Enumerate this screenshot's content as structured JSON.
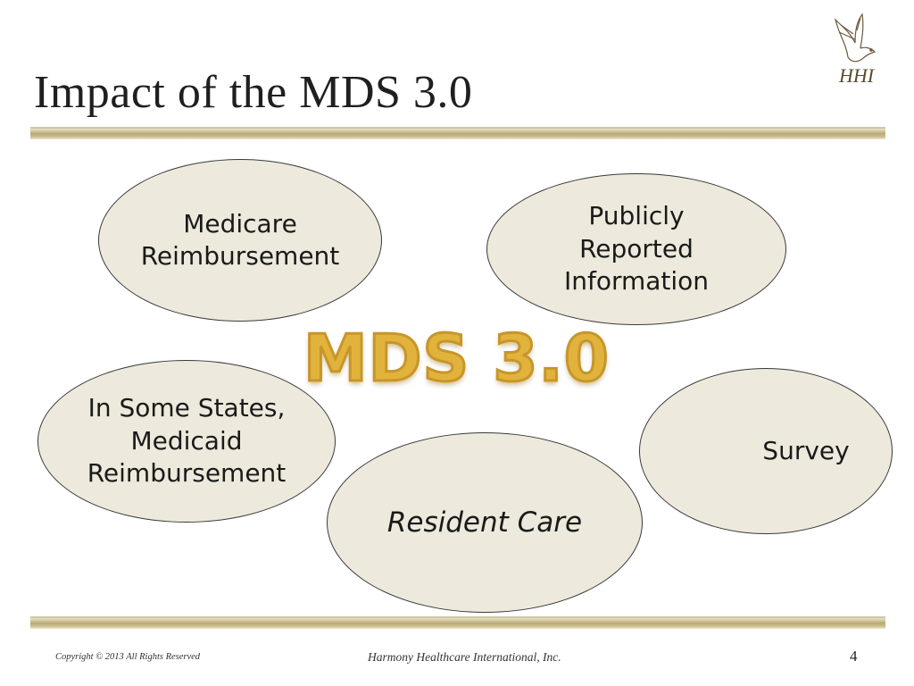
{
  "slide": {
    "title": "Impact of the MDS 3.0",
    "center_title": "MDS 3.0",
    "logo_text": "HHI"
  },
  "ellipses": {
    "medicare": "Medicare\nReimbursement",
    "publicly": "Publicly\nReported\nInformation",
    "medicaid": "In Some States,\nMedicaid\nReimbursement",
    "resident": "Resident Care",
    "survey": "Survey"
  },
  "footer": {
    "copyright": "Copyright © 2013 All Rights Reserved",
    "company": "Harmony Healthcare International, Inc.",
    "page_number": "4"
  },
  "colors": {
    "ellipse_fill": "#ede9dc",
    "center_title_gold": "#e2b33c",
    "divider_gold": "#b7aa7a"
  }
}
